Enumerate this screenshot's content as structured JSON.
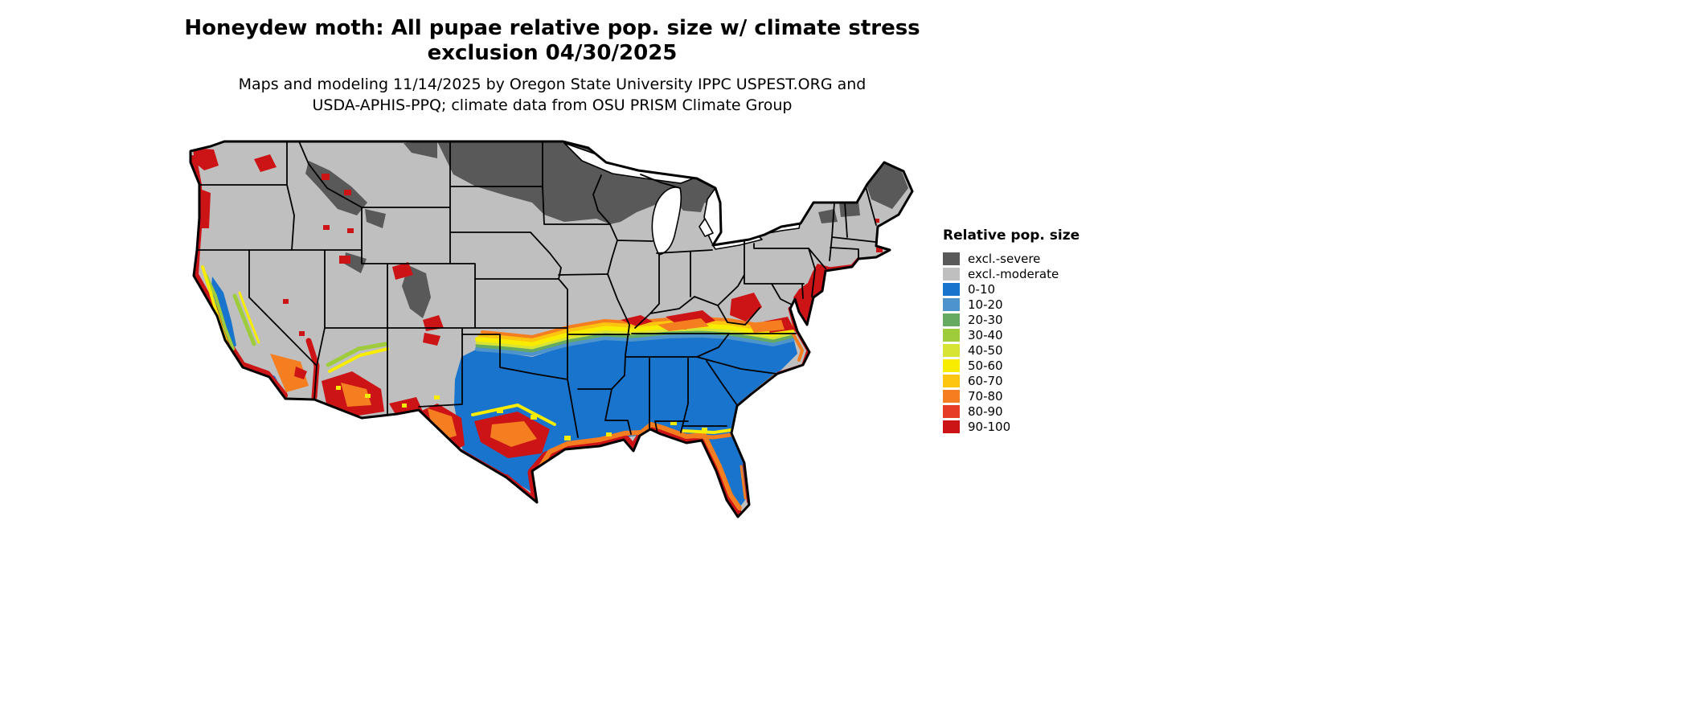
{
  "title": {
    "line1": "Honeydew moth: All pupae relative pop. size w/ climate stress",
    "line2": "exclusion 04/30/2025"
  },
  "subtitle": {
    "line1": "Maps and modeling 11/14/2025 by Oregon State University IPPC USPEST.ORG and",
    "line2": "USDA-APHIS-PPQ; climate data from OSU PRISM Climate Group"
  },
  "legend": {
    "title": "Relative pop. size",
    "items": [
      {
        "label": "excl.-severe",
        "color": "#595959"
      },
      {
        "label": "excl.-moderate",
        "color": "#bfbfbf"
      },
      {
        "label": "0-10",
        "color": "#1874cd"
      },
      {
        "label": "10-20",
        "color": "#4d94cc"
      },
      {
        "label": "20-30",
        "color": "#66a961"
      },
      {
        "label": "30-40",
        "color": "#9fcc3b"
      },
      {
        "label": "40-50",
        "color": "#d7e335"
      },
      {
        "label": "50-60",
        "color": "#f8ec00"
      },
      {
        "label": "60-70",
        "color": "#fdc50f"
      },
      {
        "label": "70-80",
        "color": "#f57e20"
      },
      {
        "label": "80-90",
        "color": "#e63e25"
      },
      {
        "label": "90-100",
        "color": "#cc1417"
      }
    ]
  }
}
